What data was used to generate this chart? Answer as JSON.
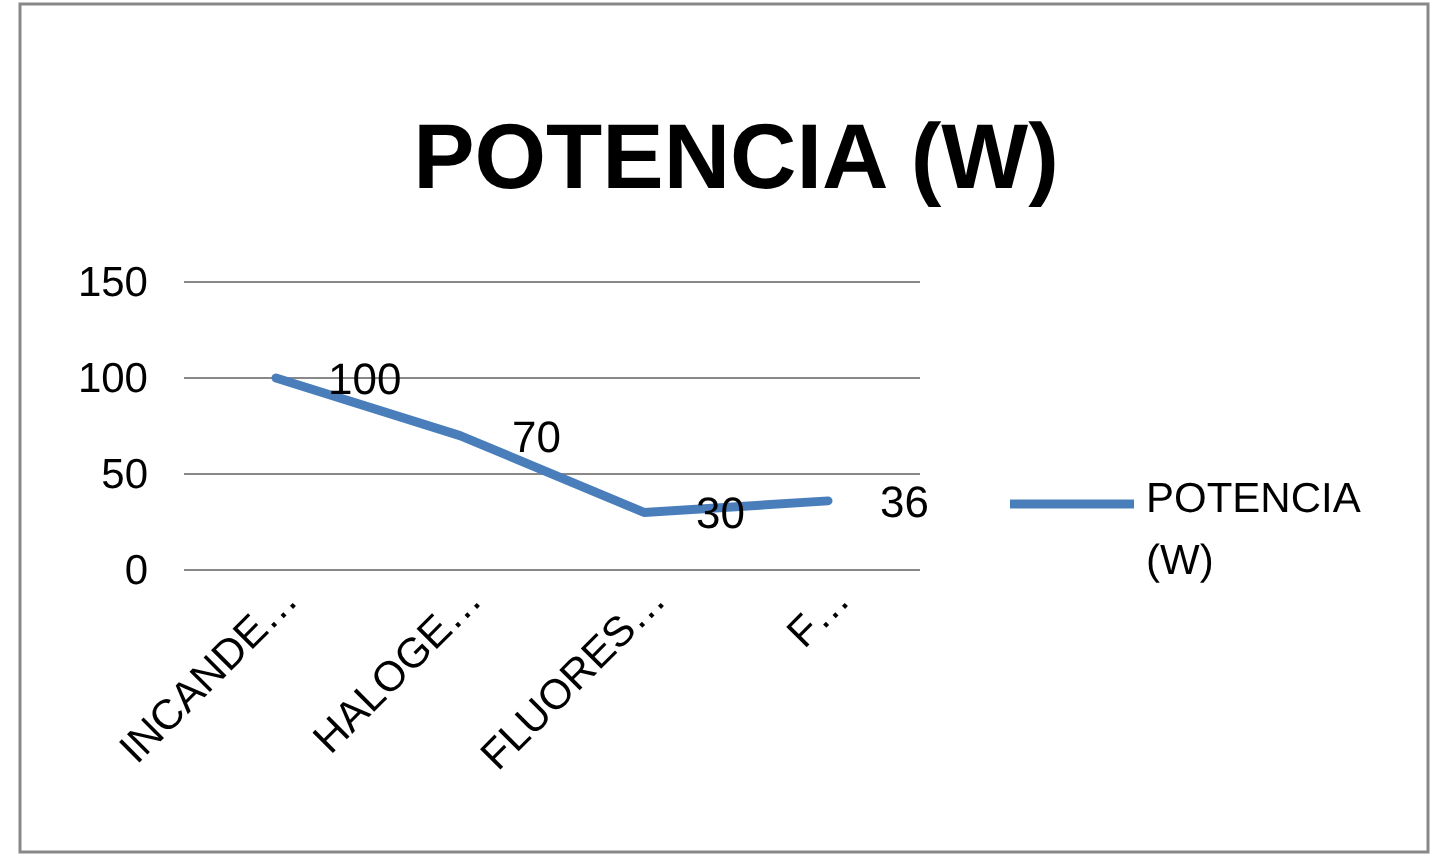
{
  "chart_data": {
    "type": "line",
    "title": "POTENCIA (W)",
    "categories": [
      "INCANDE…",
      "HALOGE…",
      "FLUORES…",
      "F…"
    ],
    "series": [
      {
        "name": "POTENCIA (W)",
        "color": "#4a7ebb",
        "values": [
          100,
          70,
          30,
          36
        ]
      }
    ],
    "ylim": [
      0,
      150
    ],
    "yticks": [
      0,
      50,
      100,
      150
    ],
    "grid": "y",
    "legend": "right",
    "data_labels": true,
    "marker": "none",
    "line_style": "solid"
  }
}
